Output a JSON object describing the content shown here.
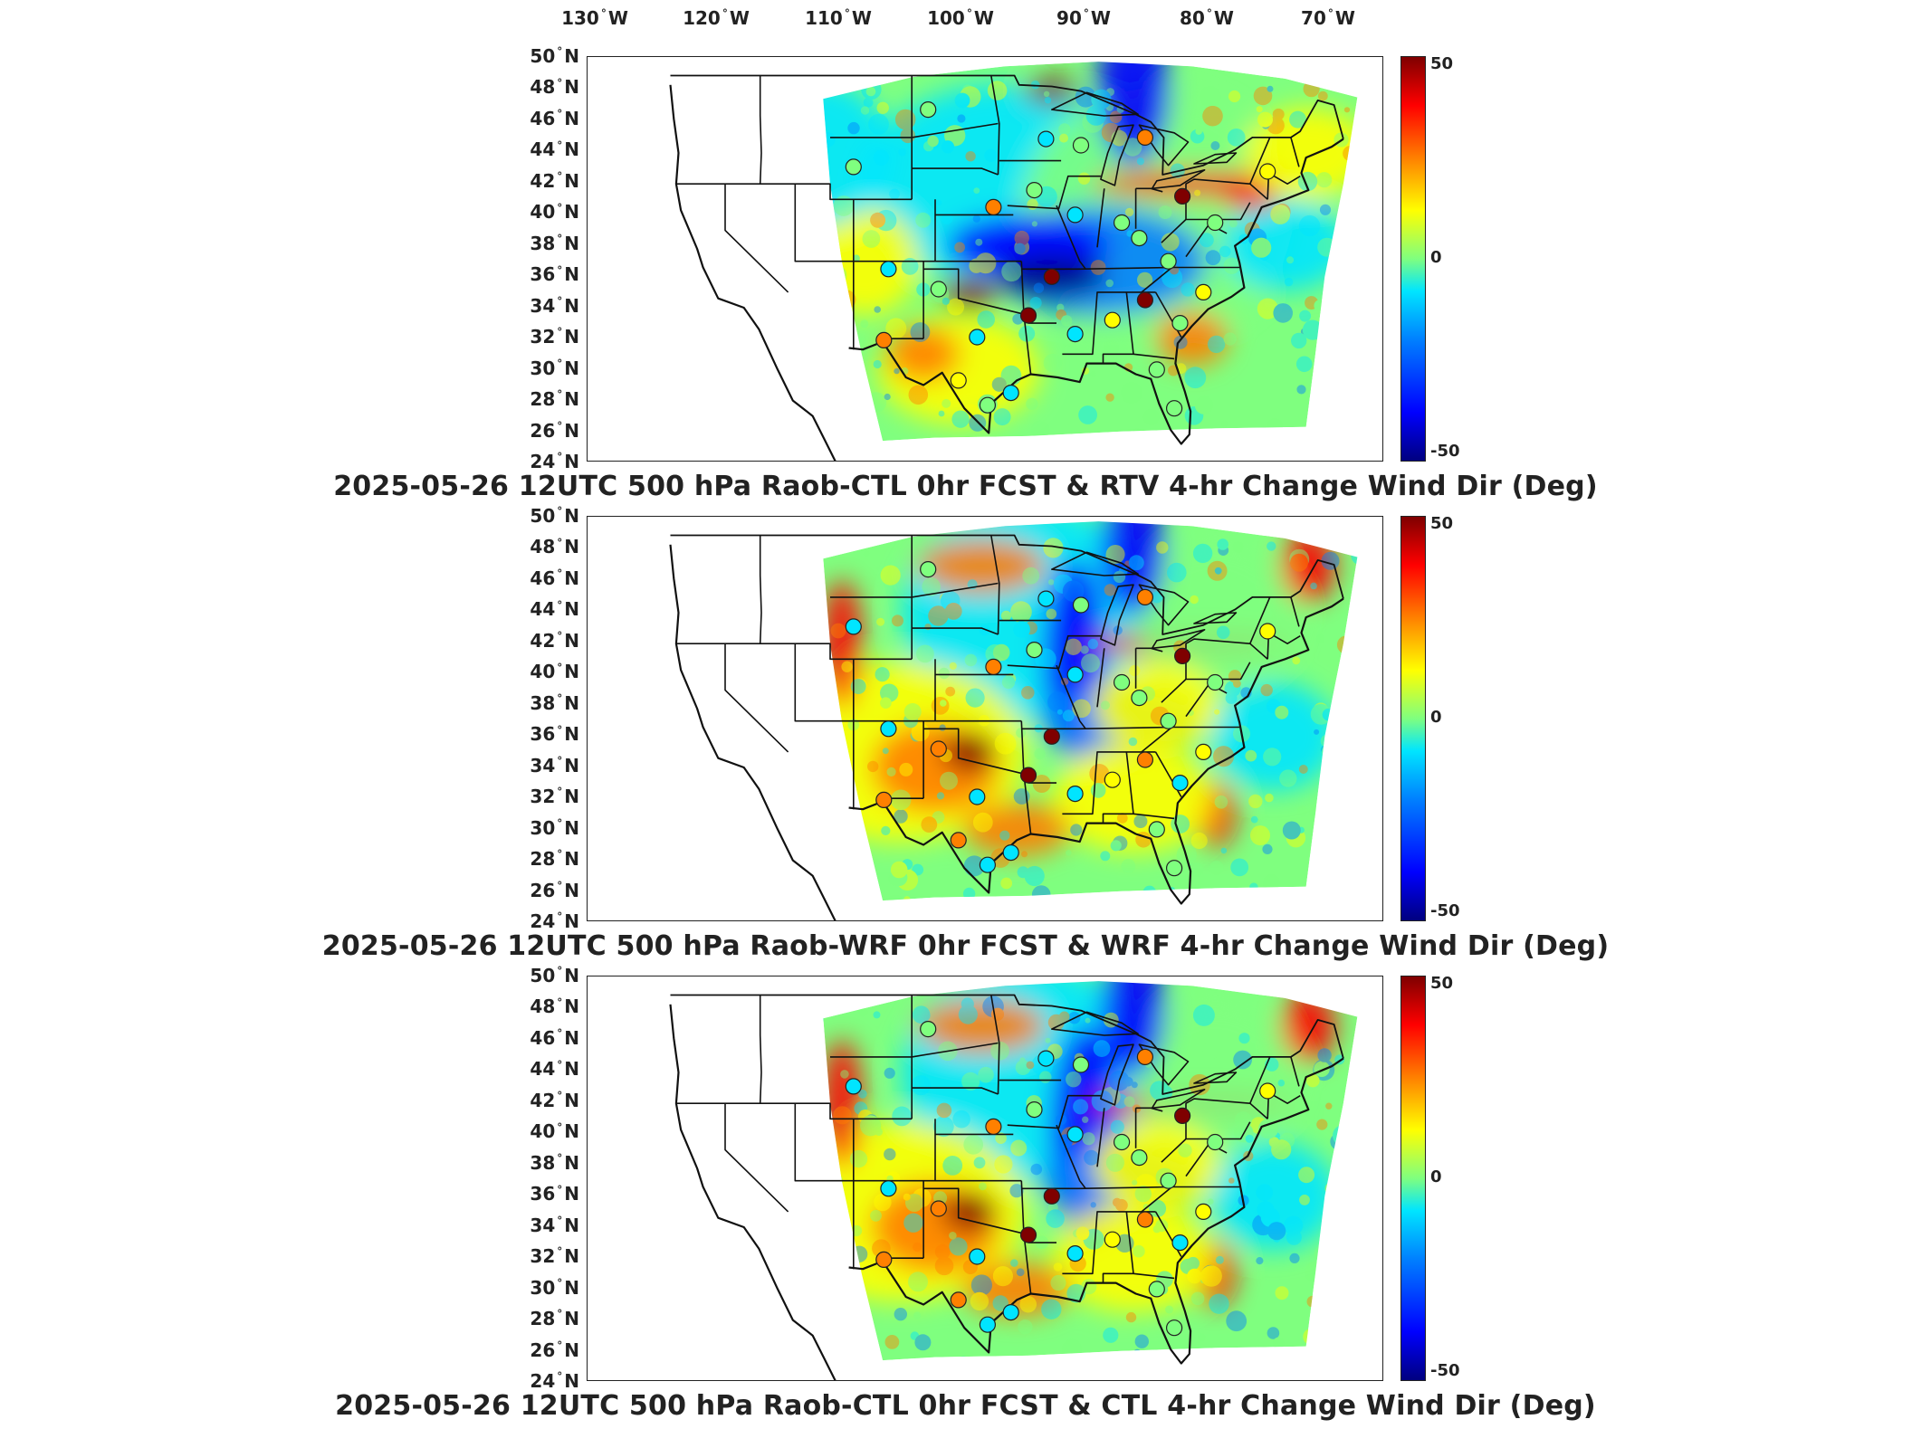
{
  "lon_labels": [
    {
      "num": "130",
      "dir": "W"
    },
    {
      "num": "120",
      "dir": "W"
    },
    {
      "num": "110",
      "dir": "W"
    },
    {
      "num": "100",
      "dir": "W"
    },
    {
      "num": "90",
      "dir": "W"
    },
    {
      "num": "80",
      "dir": "W"
    },
    {
      "num": "70",
      "dir": "W"
    }
  ],
  "lat_labels": [
    "50",
    "48",
    "46",
    "44",
    "42",
    "40",
    "38",
    "36",
    "34",
    "32",
    "30",
    "28",
    "26",
    "24"
  ],
  "lat_dir": "N",
  "degree_symbol": "°",
  "colorbar": {
    "ticks": [
      "50",
      "0",
      "-50"
    ],
    "range": [
      -50,
      50
    ],
    "colormap": "jet"
  },
  "panels": [
    {
      "title": "2025-05-26 12UTC 500 hPa Raob-CTL 0hr FCST & RTV 4-hr Change Wind Dir (Deg)"
    },
    {
      "title": "2025-05-26 12UTC 500 hPa Raob-WRF 0hr FCST & WRF 4-hr Change Wind Dir (Deg)"
    },
    {
      "title": "2025-05-26 12UTC 500 hPa Raob-CTL 0hr FCST & CTL 4-hr Change Wind Dir (Deg)"
    }
  ],
  "colors": {
    "dark_red": "#7f0000",
    "red": "#ff0000",
    "orange": "#ff8000",
    "yellow": "#ffff00",
    "green": "#7fff7f",
    "cyan": "#00e5ff",
    "light_blue": "#0080ff",
    "blue": "#0000ff",
    "dark_blue": "#00007f"
  }
}
